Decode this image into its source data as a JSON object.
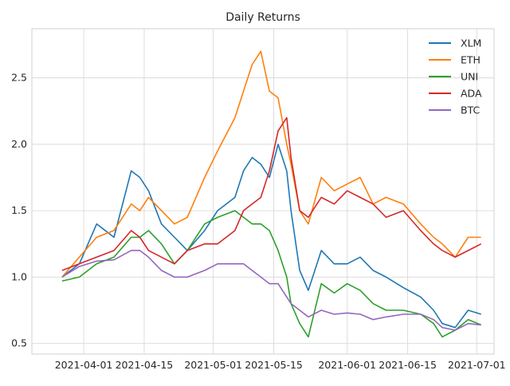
{
  "chart_data": {
    "type": "line",
    "title": "Daily Returns",
    "xlabel": "",
    "ylabel": "",
    "x_type": "date",
    "xlim": [
      "2021-03-20",
      "2021-07-05"
    ],
    "ylim": [
      0.42,
      2.87
    ],
    "x_ticks": [
      "2021-04-01",
      "2021-04-15",
      "2021-05-01",
      "2021-05-15",
      "2021-06-01",
      "2021-06-15",
      "2021-07-01"
    ],
    "y_ticks": [
      0.5,
      1.0,
      1.5,
      2.0,
      2.5
    ],
    "y_tick_labels": [
      "0.5",
      "1.0",
      "1.5",
      "2.0",
      "2.5"
    ],
    "grid": true,
    "legend_position": "top-right",
    "x": [
      "2021-03-27",
      "2021-03-31",
      "2021-04-04",
      "2021-04-08",
      "2021-04-12",
      "2021-04-14",
      "2021-04-16",
      "2021-04-19",
      "2021-04-22",
      "2021-04-25",
      "2021-04-29",
      "2021-05-02",
      "2021-05-06",
      "2021-05-08",
      "2021-05-10",
      "2021-05-12",
      "2021-05-14",
      "2021-05-16",
      "2021-05-18",
      "2021-05-19",
      "2021-05-21",
      "2021-05-23",
      "2021-05-26",
      "2021-05-29",
      "2021-06-01",
      "2021-06-04",
      "2021-06-07",
      "2021-06-10",
      "2021-06-14",
      "2021-06-18",
      "2021-06-21",
      "2021-06-23",
      "2021-06-26",
      "2021-06-29",
      "2021-07-02"
    ],
    "series": [
      {
        "name": "XLM",
        "color": "#1f77b4",
        "values": [
          1.0,
          1.1,
          1.4,
          1.3,
          1.8,
          1.75,
          1.65,
          1.4,
          1.3,
          1.2,
          1.35,
          1.5,
          1.6,
          1.8,
          1.9,
          1.85,
          1.75,
          2.0,
          1.8,
          1.5,
          1.05,
          0.9,
          1.2,
          1.1,
          1.1,
          1.15,
          1.05,
          1.0,
          0.92,
          0.85,
          0.75,
          0.65,
          0.62,
          0.75,
          0.72
        ]
      },
      {
        "name": "ETH",
        "color": "#ff7f0e",
        "values": [
          1.0,
          1.15,
          1.3,
          1.35,
          1.55,
          1.5,
          1.6,
          1.5,
          1.4,
          1.45,
          1.75,
          1.95,
          2.2,
          2.4,
          2.6,
          2.7,
          2.4,
          2.35,
          2.0,
          1.85,
          1.5,
          1.4,
          1.75,
          1.65,
          1.7,
          1.75,
          1.55,
          1.6,
          1.55,
          1.4,
          1.3,
          1.25,
          1.15,
          1.3,
          1.3
        ]
      },
      {
        "name": "UNI",
        "color": "#2ca02c",
        "values": [
          0.97,
          1.0,
          1.1,
          1.15,
          1.3,
          1.3,
          1.35,
          1.25,
          1.1,
          1.2,
          1.4,
          1.45,
          1.5,
          1.45,
          1.4,
          1.4,
          1.35,
          1.2,
          1.0,
          0.8,
          0.65,
          0.55,
          0.95,
          0.88,
          0.95,
          0.9,
          0.8,
          0.75,
          0.75,
          0.72,
          0.65,
          0.55,
          0.6,
          0.68,
          0.64
        ]
      },
      {
        "name": "ADA",
        "color": "#d62728",
        "values": [
          1.05,
          1.1,
          1.15,
          1.2,
          1.35,
          1.3,
          1.2,
          1.15,
          1.1,
          1.2,
          1.25,
          1.25,
          1.35,
          1.5,
          1.55,
          1.6,
          1.8,
          2.1,
          2.2,
          1.9,
          1.5,
          1.45,
          1.6,
          1.55,
          1.65,
          1.6,
          1.55,
          1.45,
          1.5,
          1.35,
          1.25,
          1.2,
          1.15,
          1.2,
          1.25
        ]
      },
      {
        "name": "BTC",
        "color": "#9467bd",
        "values": [
          1.0,
          1.08,
          1.12,
          1.13,
          1.2,
          1.2,
          1.15,
          1.05,
          1.0,
          1.0,
          1.05,
          1.1,
          1.1,
          1.1,
          1.05,
          1.0,
          0.95,
          0.95,
          0.85,
          0.8,
          0.75,
          0.7,
          0.75,
          0.72,
          0.73,
          0.72,
          0.68,
          0.7,
          0.72,
          0.72,
          0.68,
          0.62,
          0.6,
          0.65,
          0.64
        ]
      }
    ]
  }
}
